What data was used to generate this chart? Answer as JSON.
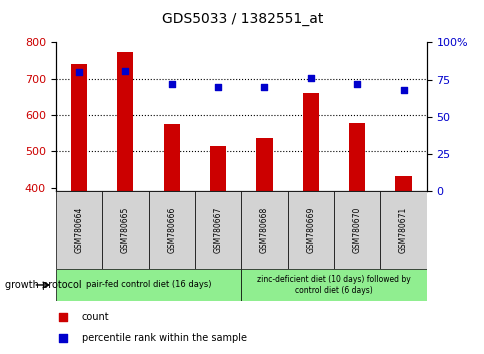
{
  "title": "GDS5033 / 1382551_at",
  "samples": [
    "GSM780664",
    "GSM780665",
    "GSM780666",
    "GSM780667",
    "GSM780668",
    "GSM780669",
    "GSM780670",
    "GSM780671"
  ],
  "counts": [
    740,
    775,
    575,
    515,
    537,
    660,
    578,
    432
  ],
  "percentiles": [
    80,
    81,
    72,
    70,
    70,
    76,
    72,
    68
  ],
  "bar_color": "#cc0000",
  "dot_color": "#0000cc",
  "ylim_left": [
    390,
    800
  ],
  "ylim_right": [
    0,
    100
  ],
  "yticks_left": [
    400,
    500,
    600,
    700,
    800
  ],
  "yticks_right": [
    0,
    25,
    50,
    75,
    100
  ],
  "grid_values": [
    500,
    600,
    700
  ],
  "group1_label": "pair-fed control diet (16 days)",
  "group2_label": "zinc-deficient diet (10 days) followed by\ncontrol diet (6 days)",
  "group1_indices": [
    0,
    1,
    2,
    3
  ],
  "group2_indices": [
    4,
    5,
    6,
    7
  ],
  "group_color": "#90ee90",
  "sample_box_color": "#d3d3d3",
  "legend_count_label": "count",
  "legend_pct_label": "percentile rank within the sample",
  "growth_protocol_label": "growth protocol",
  "bar_width": 0.35,
  "fig_width": 4.85,
  "fig_height": 3.54,
  "dpi": 100
}
